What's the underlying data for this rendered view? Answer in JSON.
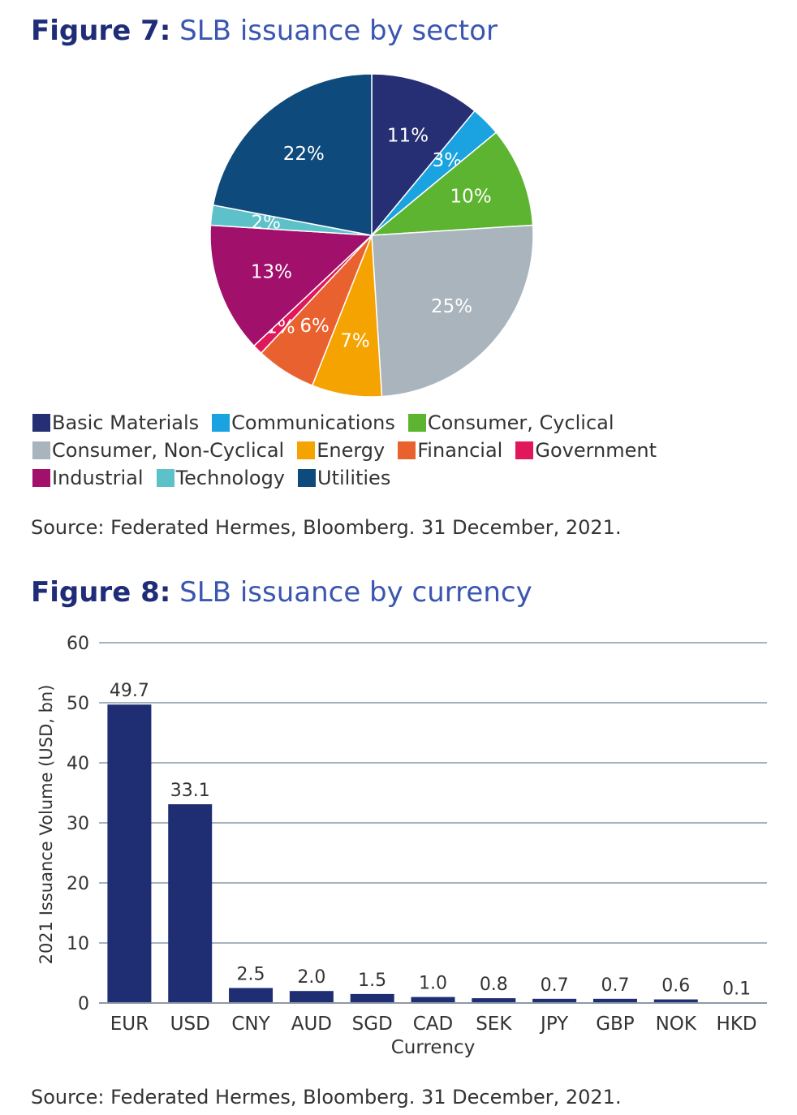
{
  "figure7": {
    "label": "Figure 7:",
    "title": "SLB issuance by sector",
    "source": "Source: Federated Hermes, Bloomberg. 31 December, 2021."
  },
  "figure8": {
    "label": "Figure 8:",
    "title": "SLB issuance by currency",
    "source": "Source: Federated Hermes, Bloomberg. 31 December, 2021."
  },
  "chart_data": [
    {
      "type": "pie",
      "title": "SLB issuance by sector",
      "slices": [
        {
          "name": "Basic Materials",
          "value": 11,
          "label": "11%",
          "color": "#262f73"
        },
        {
          "name": "Communications",
          "value": 3,
          "label": "3%",
          "color": "#1aa3e0"
        },
        {
          "name": "Consumer, Cyclical",
          "value": 10,
          "label": "10%",
          "color": "#5db431"
        },
        {
          "name": "Consumer, Non-Cyclical",
          "value": 25,
          "label": "25%",
          "color": "#a9b4bc"
        },
        {
          "name": "Energy",
          "value": 7,
          "label": "7%",
          "color": "#f5a300"
        },
        {
          "name": "Financial",
          "value": 6,
          "label": "6%",
          "color": "#e9612e"
        },
        {
          "name": "Government",
          "value": 1,
          "label": "1%",
          "color": "#e0175a"
        },
        {
          "name": "Industrial",
          "value": 13,
          "label": "13%",
          "color": "#a1106b"
        },
        {
          "name": "Technology",
          "value": 2,
          "label": "2%",
          "color": "#5cc1c8"
        },
        {
          "name": "Utilities",
          "value": 22,
          "label": "22%",
          "color": "#0e4a7b"
        }
      ],
      "legend_rows": [
        [
          "Basic Materials",
          "Communications",
          "Consumer, Cyclical"
        ],
        [
          "Consumer, Non-Cyclical",
          "Energy",
          "Financial",
          "Government"
        ],
        [
          "Industrial",
          "Technology",
          "Utilities"
        ]
      ]
    },
    {
      "type": "bar",
      "title": "SLB issuance by currency",
      "categories": [
        "EUR",
        "USD",
        "CNY",
        "AUD",
        "SGD",
        "CAD",
        "SEK",
        "JPY",
        "GBP",
        "NOK",
        "HKD"
      ],
      "values": [
        49.7,
        33.1,
        2.5,
        2.0,
        1.5,
        1.0,
        0.8,
        0.7,
        0.7,
        0.6,
        0.1
      ],
      "value_labels": [
        "49.7",
        "33.1",
        "2.5",
        "2.0",
        "1.5",
        "1.0",
        "0.8",
        "0.7",
        "0.7",
        "0.6",
        "0.1"
      ],
      "xlabel": "Currency",
      "ylabel": "2021 Issuance Volume (USD, bn)",
      "ylim": [
        0,
        60
      ],
      "yticks": [
        0,
        10,
        20,
        30,
        40,
        50,
        60
      ],
      "bar_color": "#1f2d73",
      "grid": true
    }
  ]
}
